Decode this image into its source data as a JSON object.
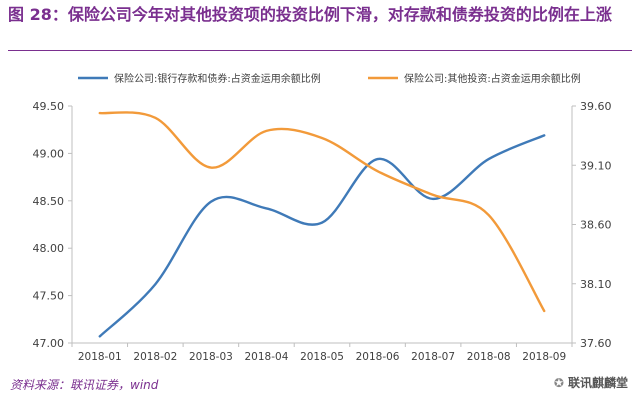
{
  "figure": {
    "title": "图 28：保险公司今年对其他投资项的投资比例下滑，对存款和债券投资的比例在上涨",
    "source": "资料来源：联讯证券，wind",
    "watermark": "联讯麒麟堂"
  },
  "chart_data": {
    "type": "line",
    "categories": [
      "2018-01",
      "2018-02",
      "2018-03",
      "2018-04",
      "2018-05",
      "2018-06",
      "2018-07",
      "2018-08",
      "2018-09"
    ],
    "series": [
      {
        "name": "保险公司:银行存款和债券:占资金运用余额比例",
        "axis": "left",
        "color": "#3f7ab8",
        "values": [
          47.07,
          47.62,
          48.49,
          48.42,
          48.27,
          48.94,
          48.52,
          48.94,
          49.19
        ]
      },
      {
        "name": "保险公司:其他投资:占资金运用余额比例",
        "axis": "right",
        "color": "#f29a3a",
        "values": [
          39.54,
          39.5,
          39.08,
          39.39,
          39.33,
          39.05,
          38.85,
          38.68,
          37.87
        ]
      }
    ],
    "left_axis": {
      "min": 47.0,
      "max": 49.5,
      "ticks": [
        "47.00",
        "47.50",
        "48.00",
        "48.50",
        "49.00",
        "49.50"
      ]
    },
    "right_axis": {
      "min": 37.6,
      "max": 39.6,
      "ticks": [
        "37.60",
        "38.10",
        "38.60",
        "39.10",
        "39.60"
      ]
    },
    "legend_position": "top",
    "grid": false
  }
}
